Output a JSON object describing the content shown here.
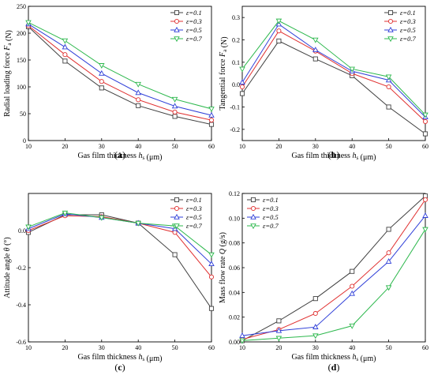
{
  "legend_labels": [
    "ε=0.1",
    "ε=0.3",
    "ε=0.5",
    "ε=0.7"
  ],
  "series_colors": [
    "#404040",
    "#e03030",
    "#2f3fd8",
    "#2db84d"
  ],
  "markers": [
    "square",
    "circle",
    "triangle",
    "down-triangle"
  ],
  "chart_data": [
    {
      "panel": "(a)",
      "type": "line",
      "xlabel": "Gas film thickness h_s (μm)",
      "ylabel": "Radial loading force F_a (N)",
      "x": [
        10,
        20,
        30,
        40,
        50,
        60
      ],
      "xlim": [
        10,
        60
      ],
      "xticks": [
        10,
        20,
        30,
        40,
        50,
        60
      ],
      "ylim": [
        0,
        250
      ],
      "yticks": [
        0,
        50,
        100,
        150,
        200,
        250
      ],
      "yticklabels": [
        "0",
        "50",
        "100",
        "150",
        "200",
        "250"
      ],
      "legend": "top-right",
      "series": [
        {
          "name": "ε=0.1",
          "values": [
            212,
            148,
            98,
            65,
            45,
            30
          ]
        },
        {
          "name": "ε=0.3",
          "values": [
            214,
            160,
            110,
            76,
            53,
            38
          ]
        },
        {
          "name": "ε=0.5",
          "values": [
            217,
            174,
            125,
            89,
            64,
            47
          ]
        },
        {
          "name": "ε=0.7",
          "values": [
            220,
            186,
            140,
            105,
            77,
            59
          ]
        }
      ]
    },
    {
      "panel": "(b)",
      "type": "line",
      "xlabel": "Gas film thickness h_s (μm)",
      "ylabel": "Tangential force F_a (N)",
      "x": [
        10,
        20,
        30,
        40,
        50,
        60
      ],
      "xlim": [
        10,
        60
      ],
      "xticks": [
        10,
        20,
        30,
        40,
        50,
        60
      ],
      "ylim": [
        -0.25,
        0.35
      ],
      "yticks": [
        -0.2,
        -0.1,
        0.0,
        0.1,
        0.2,
        0.3
      ],
      "yticklabels": [
        "-0.2",
        "-0.1",
        "0.0",
        "0.1",
        "0.2",
        "0.3"
      ],
      "legend": "top-right",
      "series": [
        {
          "name": "ε=0.1",
          "values": [
            -0.04,
            0.195,
            0.115,
            0.04,
            -0.1,
            -0.22
          ]
        },
        {
          "name": "ε=0.3",
          "values": [
            -0.01,
            0.24,
            0.15,
            0.05,
            -0.01,
            -0.165
          ]
        },
        {
          "name": "ε=0.5",
          "values": [
            0.01,
            0.27,
            0.155,
            0.06,
            0.02,
            -0.145
          ]
        },
        {
          "name": "ε=0.7",
          "values": [
            0.07,
            0.285,
            0.2,
            0.07,
            0.035,
            -0.135
          ]
        }
      ]
    },
    {
      "panel": "(c)",
      "type": "line",
      "xlabel": "Gas film thickness h_s (μm)",
      "ylabel": "Attitude angle θ (°)",
      "x": [
        10,
        20,
        30,
        40,
        50,
        60
      ],
      "xlim": [
        10,
        60
      ],
      "xticks": [
        10,
        20,
        30,
        40,
        50,
        60
      ],
      "ylim": [
        -0.6,
        0.2
      ],
      "yticks": [
        -0.6,
        -0.4,
        -0.2,
        0.0
      ],
      "yticklabels": [
        "-0.6",
        "-0.4",
        "-0.2",
        "0.0"
      ],
      "legend": "top-right",
      "series": [
        {
          "name": "ε=0.1",
          "values": [
            -0.01,
            0.085,
            0.085,
            0.04,
            -0.13,
            -0.42
          ]
        },
        {
          "name": "ε=0.3",
          "values": [
            0.0,
            0.08,
            0.075,
            0.04,
            -0.01,
            -0.25
          ]
        },
        {
          "name": "ε=0.5",
          "values": [
            0.01,
            0.09,
            0.07,
            0.04,
            0.01,
            -0.18
          ]
        },
        {
          "name": "ε=0.7",
          "values": [
            0.02,
            0.095,
            0.07,
            0.04,
            0.025,
            -0.13
          ]
        }
      ]
    },
    {
      "panel": "(d)",
      "type": "line",
      "xlabel": "Gas film thickness h_s (μm)",
      "ylabel": "Mass flow rate Q (g/s)",
      "x": [
        10,
        20,
        30,
        40,
        50,
        60
      ],
      "xlim": [
        10,
        60
      ],
      "xticks": [
        10,
        20,
        30,
        40,
        50,
        60
      ],
      "ylim": [
        0,
        0.12
      ],
      "yticks": [
        0,
        0.02,
        0.04,
        0.06,
        0.08,
        0.1,
        0.12
      ],
      "yticklabels": [
        "0.00",
        "0.02",
        "0.04",
        "0.06",
        "0.08",
        "0.10",
        "0.12"
      ],
      "legend": "top-left",
      "series": [
        {
          "name": "ε=0.1",
          "values": [
            0.001,
            0.017,
            0.035,
            0.057,
            0.091,
            0.118
          ]
        },
        {
          "name": "ε=0.3",
          "values": [
            0.002,
            0.01,
            0.023,
            0.045,
            0.072,
            0.115
          ]
        },
        {
          "name": "ε=0.5",
          "values": [
            0.005,
            0.009,
            0.012,
            0.039,
            0.065,
            0.102
          ]
        },
        {
          "name": "ε=0.7",
          "values": [
            0.001,
            0.003,
            0.005,
            0.013,
            0.044,
            0.091
          ]
        }
      ]
    }
  ]
}
